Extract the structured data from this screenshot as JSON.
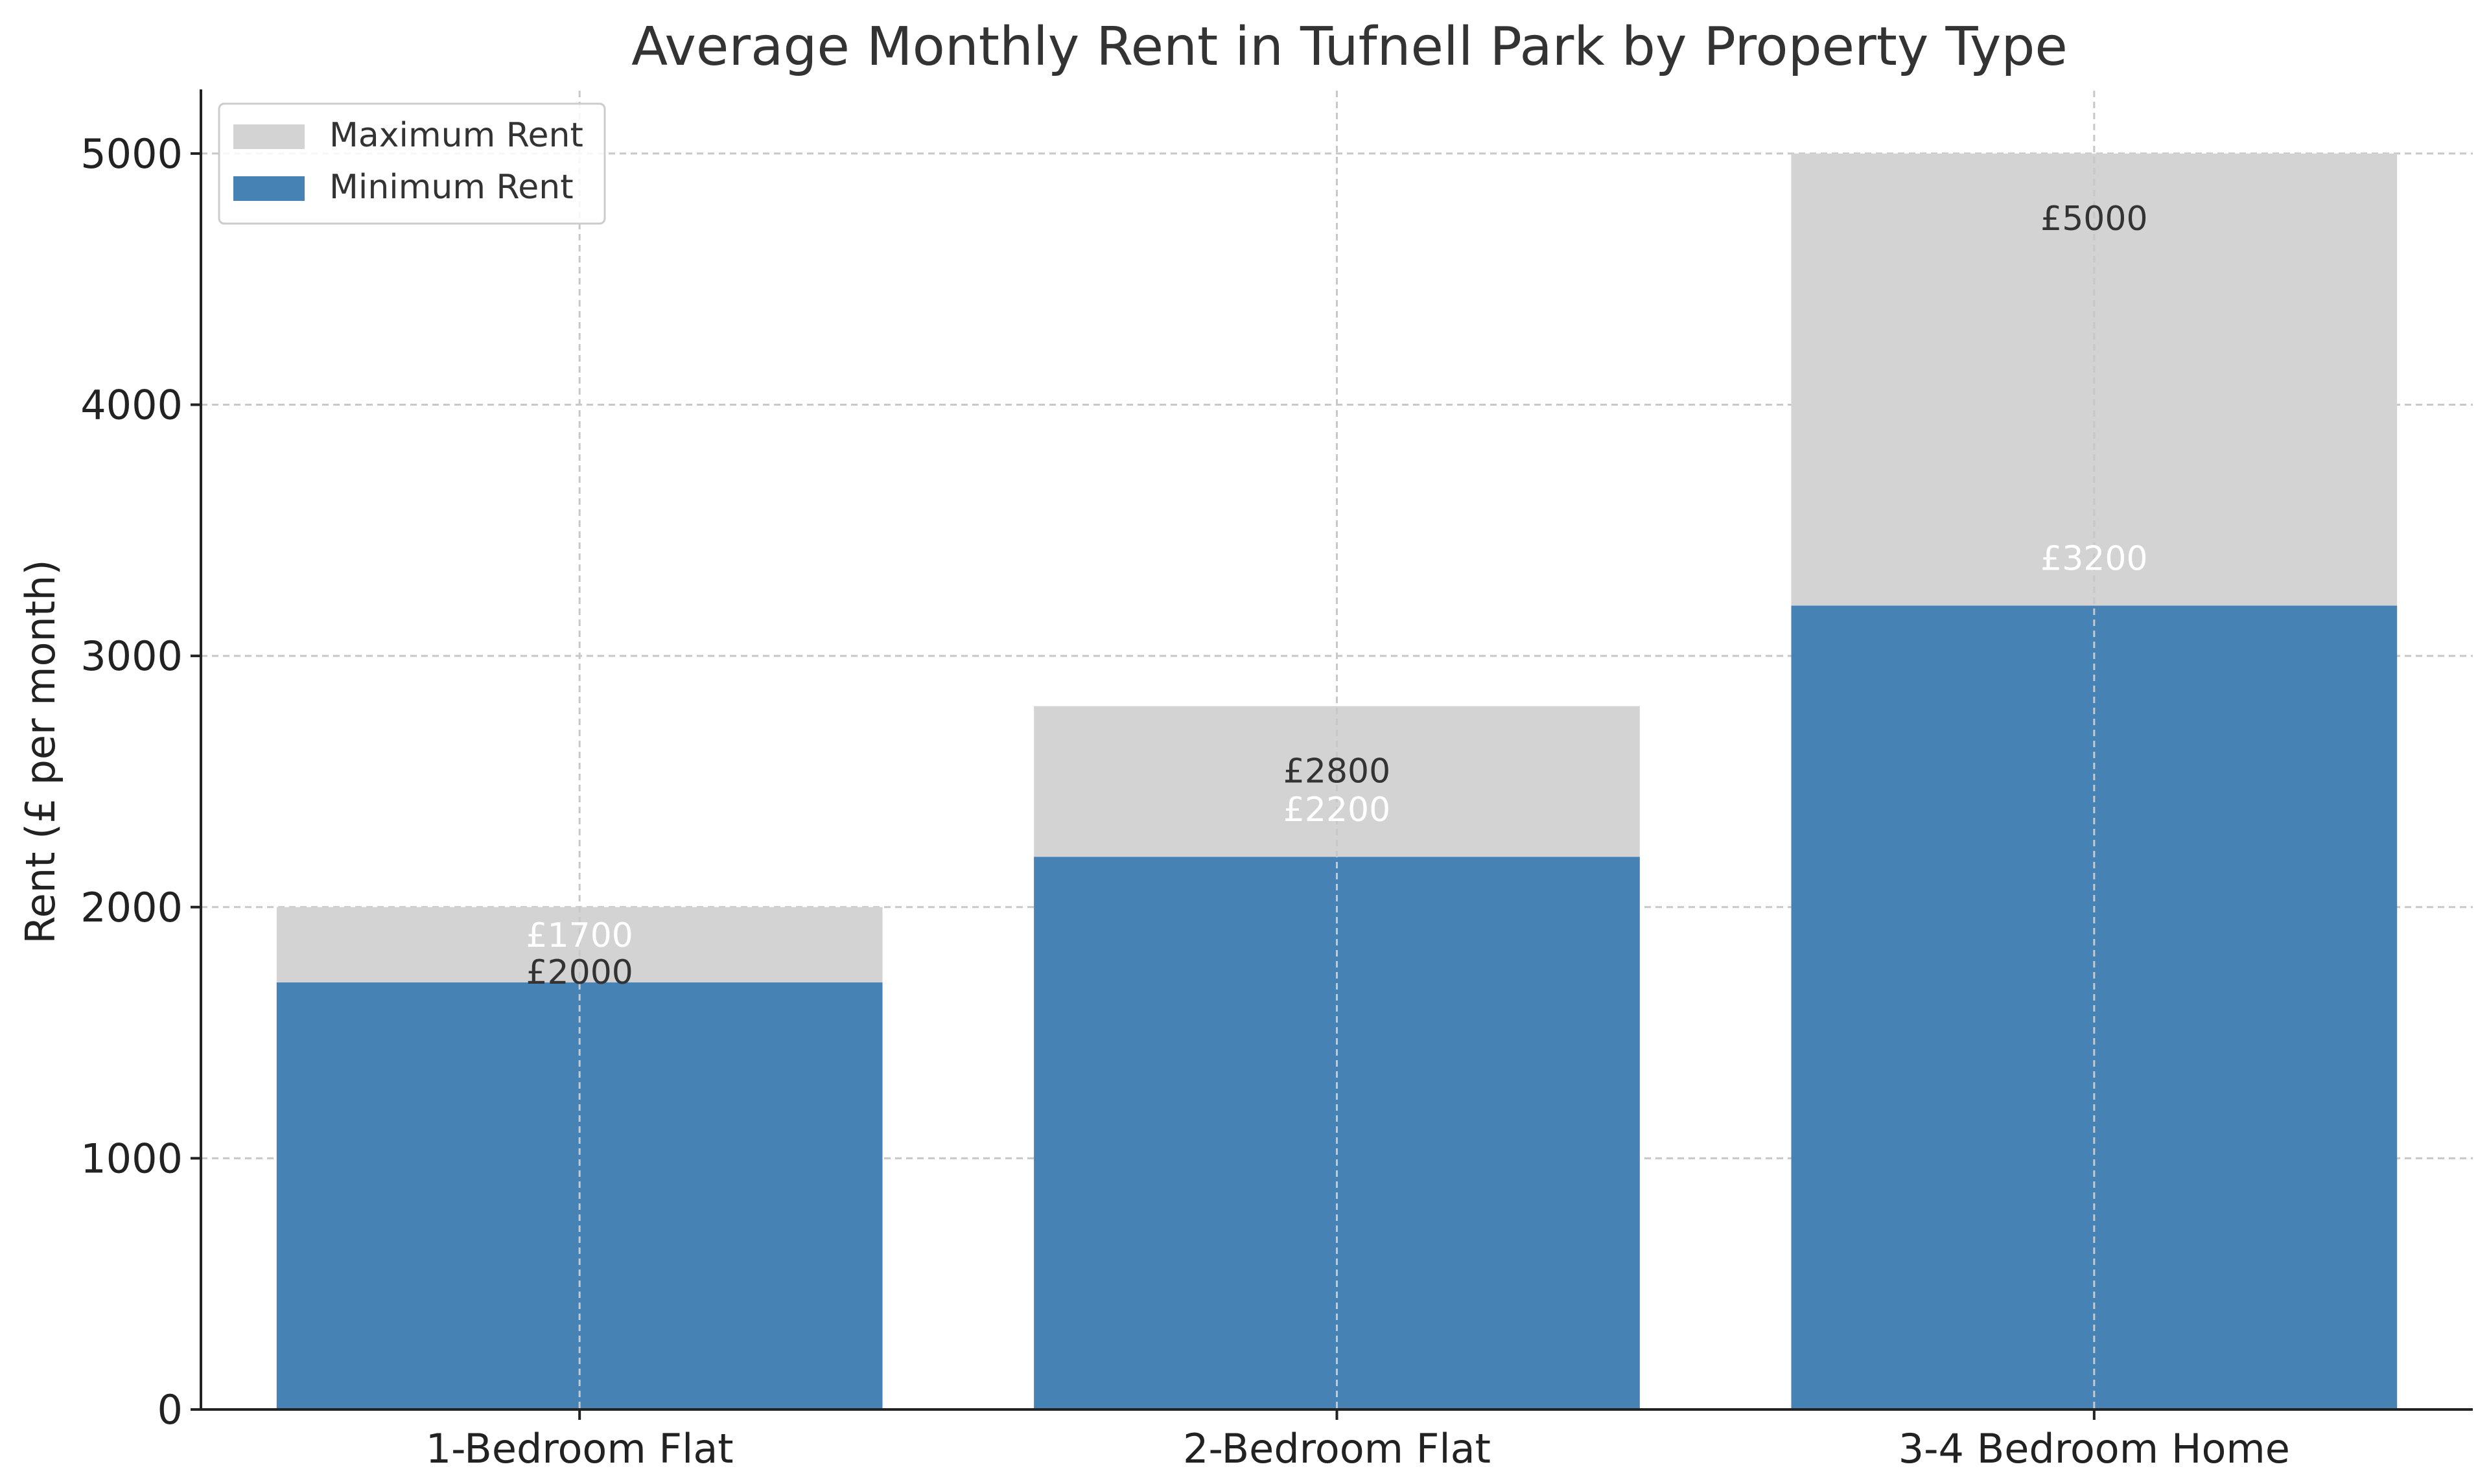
{
  "chart_data": {
    "type": "bar",
    "stacked": "overlay",
    "title": "Average Monthly Rent in Tufnell Park by Property Type",
    "xlabel": "",
    "ylabel": "Rent (£ per month)",
    "categories": [
      "1-Bedroom Flat",
      "2-Bedroom Flat",
      "3-4 Bedroom Home"
    ],
    "series": [
      {
        "name": "Maximum Rent",
        "values": [
          2000,
          2800,
          5000
        ],
        "color": "#d3d3d3",
        "label_color": "#333333",
        "labels": [
          "£2000",
          "£2800",
          "£5000"
        ]
      },
      {
        "name": "Minimum Rent",
        "values": [
          1700,
          2200,
          3200
        ],
        "color": "#4682b4",
        "label_color": "#ffffff",
        "labels": [
          "£1700",
          "£2200",
          "£3200"
        ]
      }
    ],
    "ylim": [
      0,
      5250
    ],
    "yticks": [
      0,
      1000,
      2000,
      3000,
      4000,
      5000
    ],
    "grid": true,
    "legend_position": "top-left"
  }
}
